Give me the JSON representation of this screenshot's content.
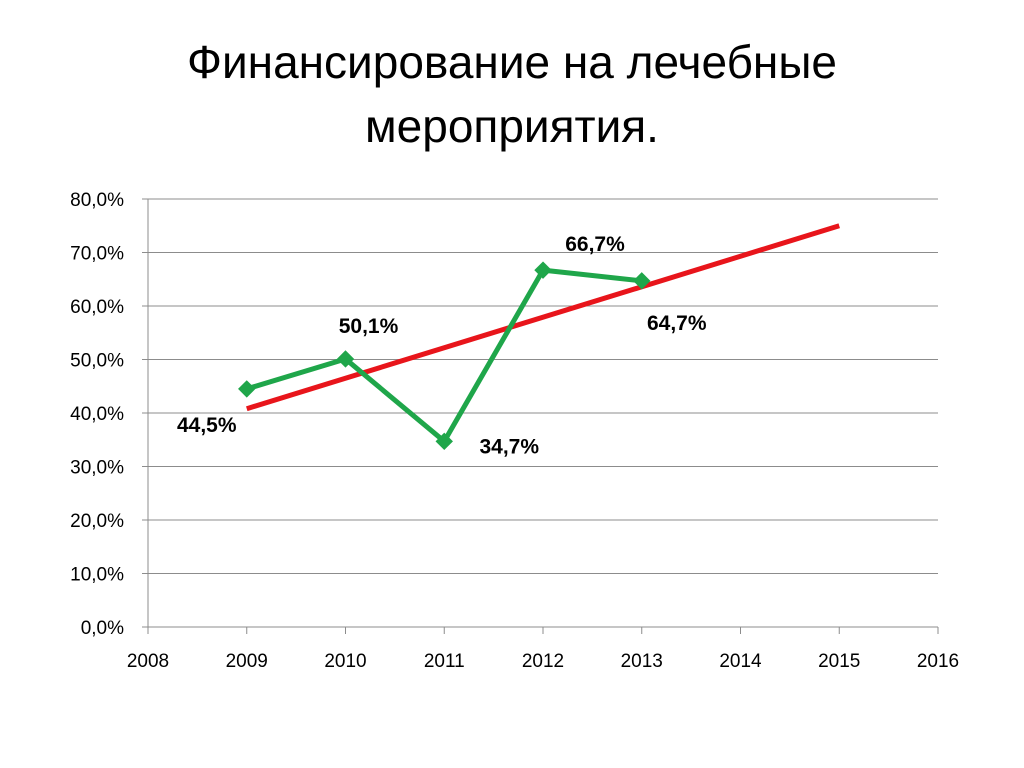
{
  "slide": {
    "title_line1": "Финансирование на лечебные",
    "title_line2": "мероприятия."
  },
  "chart_data": {
    "type": "line",
    "title": "Финансирование на лечебные мероприятия.",
    "xlabel": "",
    "ylabel": "",
    "xlim": [
      2008,
      2016
    ],
    "ylim": [
      0,
      80
    ],
    "x_ticks": [
      "2008",
      "2009",
      "2010",
      "2011",
      "2012",
      "2013",
      "2014",
      "2015",
      "2016"
    ],
    "y_ticks": [
      "0,0%",
      "10,0%",
      "20,0%",
      "30,0%",
      "40,0%",
      "50,0%",
      "60,0%",
      "70,0%",
      "80,0%"
    ],
    "grid": "horizontal",
    "legend": "none",
    "series": [
      {
        "x": [
          2009,
          2010,
          2011,
          2012,
          2013
        ],
        "y": [
          44.5,
          50.1,
          34.7,
          66.7,
          64.7
        ],
        "labels": [
          "44,5%",
          "50,1%",
          "34,7%",
          "66,7%",
          "64,7%"
        ],
        "color": "#1fa64a",
        "marker": "diamond"
      },
      {
        "type": "trendline",
        "x": [
          2009,
          2015
        ],
        "y": [
          40.8,
          75.0
        ],
        "color": "#e8151b"
      }
    ]
  }
}
